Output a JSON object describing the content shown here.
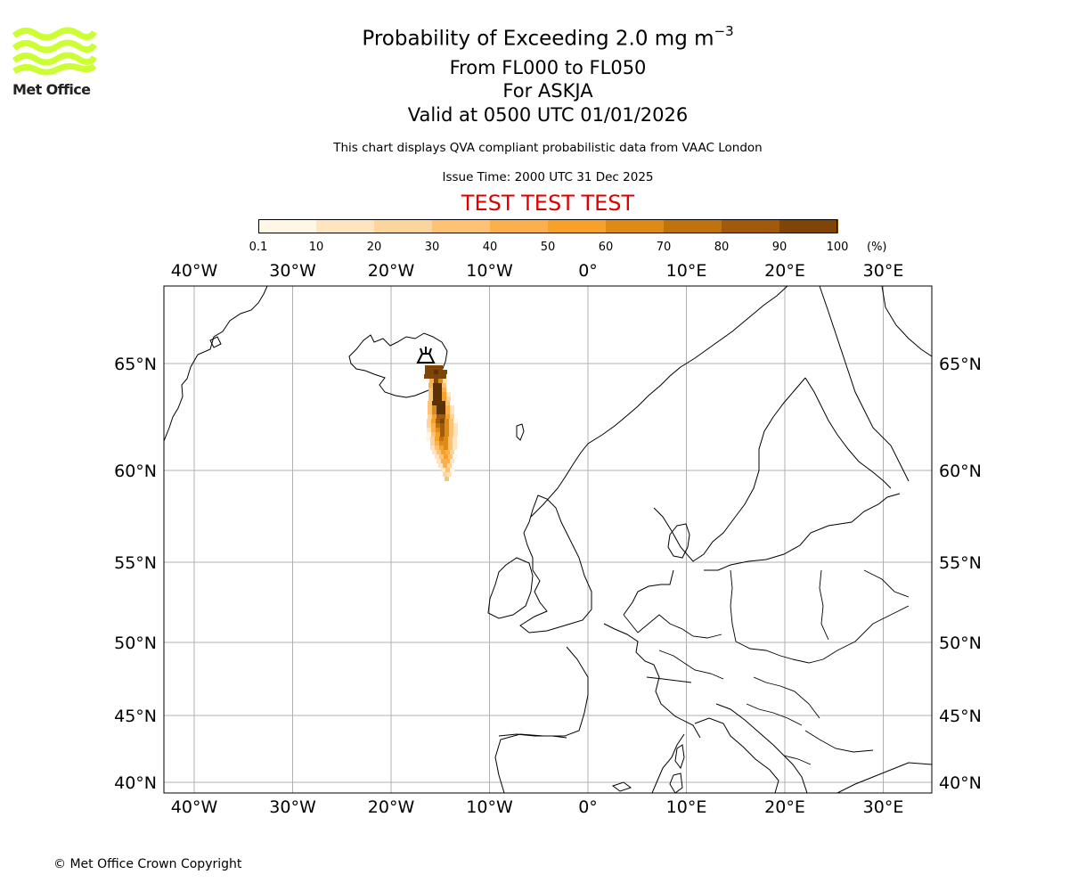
{
  "logo": {
    "text": "Met Office",
    "color": "#ccff33"
  },
  "title": {
    "main_prefix": "Probability of Exceeding 2.0 mg m",
    "main_exponent": "−3",
    "flight_levels": "From FL000 to FL050",
    "volcano": "For ASKJA",
    "valid": "Valid at 0500 UTC 01/01/2026",
    "description": "This chart displays QVA compliant probabilistic data from VAAC London",
    "issue_time": "Issue Time: 2000 UTC 31 Dec 2025",
    "test_banner": "TEST TEST TEST",
    "test_color": "#dd0000"
  },
  "colorbar": {
    "ticks": [
      "0.1",
      "10",
      "20",
      "30",
      "40",
      "50",
      "60",
      "70",
      "80",
      "90",
      "100"
    ],
    "unit": "(%)",
    "colors": [
      "#fff7e6",
      "#fee5c0",
      "#fdd49c",
      "#fdc273",
      "#fcb04c",
      "#f7a02a",
      "#de8a17",
      "#c0720d",
      "#a05a09",
      "#7f4507",
      "#5a3205"
    ]
  },
  "map": {
    "lon_labels": [
      "40°W",
      "30°W",
      "20°W",
      "10°W",
      "0°",
      "10°E",
      "20°E",
      "30°E"
    ],
    "lat_labels": [
      "65°N",
      "60°N",
      "55°N",
      "50°N",
      "45°N",
      "40°N"
    ],
    "lon_values": [
      -40,
      -30,
      -20,
      -10,
      0,
      10,
      20,
      30
    ],
    "lat_values": [
      65,
      60,
      55,
      50,
      45,
      40
    ],
    "volcano_name": "ASKJA",
    "plume_peak_probability": "90-100"
  },
  "copyright": "© Met Office Crown Copyright"
}
